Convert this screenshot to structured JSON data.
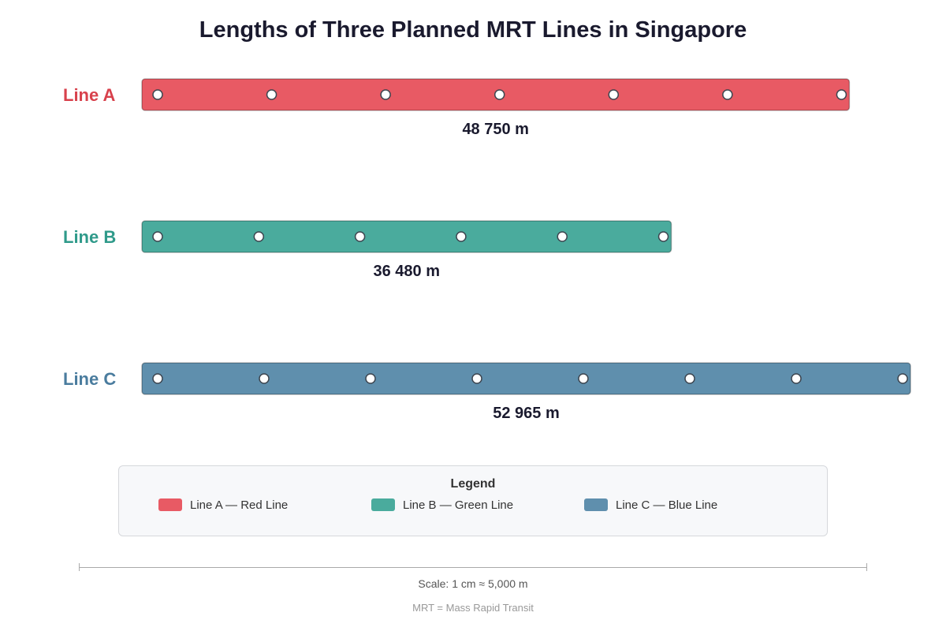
{
  "title": "Lengths of Three Planned MRT Lines in Singapore",
  "chart_data": {
    "type": "bar",
    "orientation": "horizontal",
    "unit": "m",
    "categories": [
      "Line A",
      "Line B",
      "Line C"
    ],
    "values": [
      48750,
      36480,
      52965
    ],
    "value_labels": [
      "48 750 m",
      "36 480 m",
      "52 965 m"
    ],
    "station_counts": [
      7,
      6,
      8
    ],
    "colors": [
      "#e85a64",
      "#4aab9d",
      "#5f8fad"
    ],
    "label_colors": [
      "#d8414c",
      "#2f9a8a",
      "#4a7c9e"
    ],
    "xlim": [
      0,
      52965
    ]
  },
  "legend": {
    "title": "Legend",
    "items": [
      {
        "label": "Line A — Red Line",
        "color": "#e85a64"
      },
      {
        "label": "Line B — Green Line",
        "color": "#4aab9d"
      },
      {
        "label": "Line C — Blue Line",
        "color": "#5f8fad"
      }
    ]
  },
  "scale_note": "Scale: 1 cm ≈ 5,000 m",
  "footnote": "MRT = Mass Rapid Transit"
}
